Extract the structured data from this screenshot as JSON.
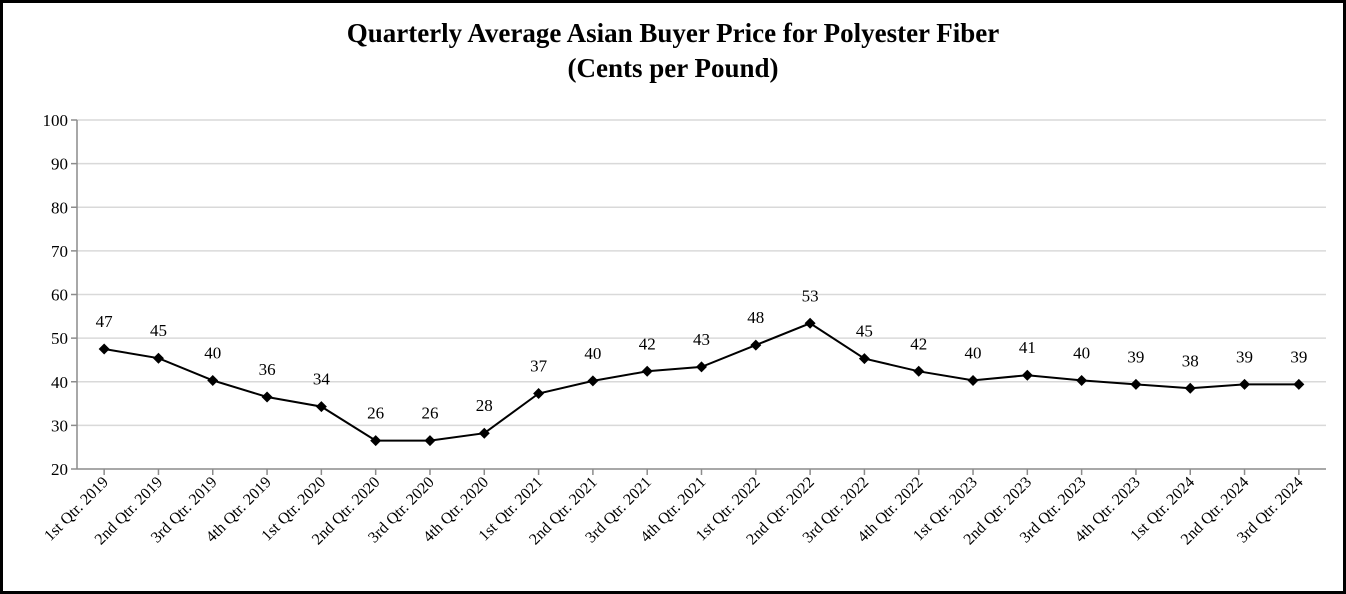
{
  "chart_data": {
    "type": "line",
    "title": "Quarterly Average Asian Buyer Price for Polyester Fiber",
    "subtitle": "(Cents per Pound)",
    "xlabel": "",
    "ylabel": "",
    "ylim": [
      20,
      100
    ],
    "yticks": [
      20,
      30,
      40,
      50,
      60,
      70,
      80,
      90,
      100
    ],
    "grid": true,
    "legend": "none",
    "categories": [
      "1st Qtr. 2019",
      "2nd Qtr. 2019",
      "3rd Qtr. 2019",
      "4th Qtr. 2019",
      "1st Qtr. 2020",
      "2nd Qtr. 2020",
      "3rd Qtr. 2020",
      "4th Qtr. 2020",
      "1st Qtr. 2021",
      "2nd Qtr. 2021",
      "3rd Qtr. 2021",
      "4th Qtr. 2021",
      "1st Qtr. 2022",
      "2nd Qtr. 2022",
      "3rd Qtr. 2022",
      "4th Qtr. 2022",
      "1st Qtr. 2023",
      "2nd Qtr. 2023",
      "3rd Qtr. 2023",
      "4th Qtr. 2023",
      "1st Qtr. 2024",
      "2nd Qtr. 2024",
      "3rd Qtr. 2024"
    ],
    "series": [
      {
        "name": "Average Asian Buyer Price",
        "values": [
          47.5,
          45.4,
          40.3,
          36.5,
          34.3,
          26.5,
          26.5,
          28.2,
          37.3,
          40.2,
          42.4,
          43.4,
          48.4,
          53.4,
          45.3,
          42.4,
          40.3,
          41.5,
          40.3,
          39.4,
          38.5,
          39.4,
          39.4
        ],
        "labels": [
          "47",
          "45",
          "40",
          "36",
          "34",
          "26",
          "26",
          "28",
          "37",
          "40",
          "42",
          "43",
          "48",
          "53",
          "45",
          "42",
          "40",
          "41",
          "40",
          "39",
          "38",
          "39",
          "39"
        ],
        "color": "#000000",
        "marker": "diamond"
      }
    ],
    "colors": {
      "line": "#000000",
      "grid": "#d9d9d9",
      "axis": "#8c8c8c",
      "border": "#000000"
    }
  }
}
